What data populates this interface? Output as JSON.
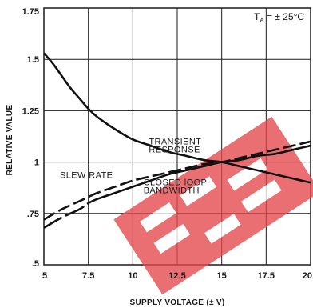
{
  "chart_data": {
    "type": "line",
    "condition_prefix": "T",
    "condition_sub": "A",
    "condition_value": " = ± 25°C",
    "xlabel": "SUPPLY VOLTAGE (± V)",
    "ylabel": "RELATIVE VALUE",
    "xlim": [
      5,
      20
    ],
    "ylim": [
      0.5,
      1.75
    ],
    "x_ticks": [
      "5",
      "7.5",
      "10",
      "12.5",
      "15",
      "17.5",
      "20"
    ],
    "y_ticks": [
      ".5",
      ".75",
      "1",
      "1.25",
      "1.5",
      "1.75"
    ],
    "grid": true,
    "series": [
      {
        "name": "TRANSIENT RESPONSE",
        "style": "solid",
        "x": [
          5,
          5.5,
          6,
          6.5,
          7,
          7.5,
          8,
          9,
          10,
          11,
          12,
          13,
          14,
          15,
          16,
          17,
          18,
          19,
          20
        ],
        "y": [
          1.53,
          1.48,
          1.42,
          1.36,
          1.31,
          1.26,
          1.22,
          1.16,
          1.11,
          1.08,
          1.05,
          1.03,
          1.01,
          1.0,
          0.98,
          0.96,
          0.94,
          0.92,
          0.9
        ]
      },
      {
        "name": "SLEW RATE",
        "style": "dashed",
        "x": [
          5,
          6,
          7,
          7.5,
          8,
          9,
          10,
          11,
          12,
          13,
          14,
          15,
          16,
          17,
          18,
          19,
          20
        ],
        "y": [
          0.72,
          0.77,
          0.81,
          0.83,
          0.85,
          0.88,
          0.91,
          0.93,
          0.95,
          0.97,
          0.99,
          1.0,
          1.02,
          1.04,
          1.06,
          1.08,
          1.1
        ]
      },
      {
        "name": "CLOSED lOOP BANDWIDTH",
        "style": "dash-solid",
        "x": [
          5,
          6,
          7,
          7.5,
          8,
          9,
          10,
          11,
          12,
          13,
          14,
          15,
          16,
          17,
          18,
          19,
          20
        ],
        "y": [
          0.68,
          0.73,
          0.77,
          0.8,
          0.82,
          0.85,
          0.88,
          0.91,
          0.94,
          0.96,
          0.98,
          1.0,
          1.01,
          1.03,
          1.04,
          1.06,
          1.08
        ]
      }
    ],
    "annotations": [
      {
        "text": "TRANSIENT",
        "x": 10.9,
        "y": 1.087
      },
      {
        "text": "RESPONSE",
        "x": 10.9,
        "y": 1.048
      },
      {
        "text": "SLEW RATE",
        "x": 5.9,
        "y": 0.922
      },
      {
        "text": "CLOSED lOOP",
        "x": 10.6,
        "y": 0.887
      },
      {
        "text": "BANDWIDTH",
        "x": 10.6,
        "y": 0.848
      }
    ]
  },
  "colors": {
    "line": "#111111",
    "grid": "#1a1a1a",
    "watermark": "#e3474b"
  },
  "watermark": {
    "present": true
  }
}
